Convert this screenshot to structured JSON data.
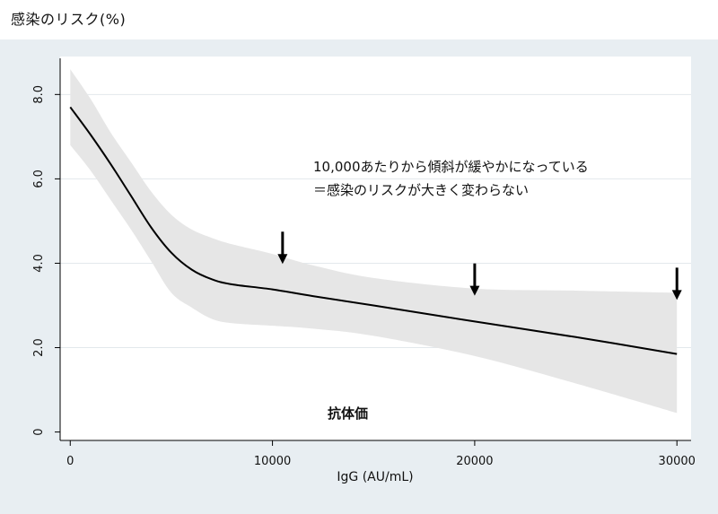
{
  "chart_data": {
    "type": "line",
    "title": "感染のリスク(%)",
    "xlabel": "IgG (AU/mL)",
    "ylabel": "",
    "xlim": [
      -500,
      30700
    ],
    "ylim": [
      -0.2,
      8.9
    ],
    "x_ticks": [
      0,
      10000,
      20000,
      30000
    ],
    "x_tick_labels": [
      "0",
      "10000",
      "20000",
      "30000"
    ],
    "y_ticks": [
      0,
      2,
      4,
      6,
      8
    ],
    "y_tick_labels": [
      "0",
      "2.0",
      "4.0",
      "6.0",
      "8.0"
    ],
    "grid": true,
    "series": [
      {
        "x": [
          0,
          1000,
          2000,
          3000,
          4000,
          5000,
          6000,
          7000,
          8000,
          10000,
          12000,
          15000,
          20000,
          25000,
          30000
        ],
        "values": [
          7.7,
          7.05,
          6.35,
          5.6,
          4.85,
          4.25,
          3.85,
          3.62,
          3.5,
          3.38,
          3.22,
          3.0,
          2.62,
          2.25,
          1.85
        ]
      }
    ],
    "confidence_band": {
      "x": [
        0,
        1000,
        2000,
        3000,
        4000,
        5000,
        6000,
        7000,
        8000,
        10000,
        12000,
        15000,
        20000,
        25000,
        30000
      ],
      "upper": [
        8.6,
        7.9,
        7.1,
        6.4,
        5.7,
        5.15,
        4.8,
        4.6,
        4.45,
        4.22,
        3.95,
        3.65,
        3.4,
        3.35,
        3.3
      ],
      "lower": [
        6.8,
        6.2,
        5.5,
        4.8,
        4.05,
        3.3,
        2.95,
        2.68,
        2.58,
        2.52,
        2.45,
        2.28,
        1.8,
        1.15,
        0.45
      ]
    },
    "arrows": [
      10500,
      20000,
      30000
    ],
    "annotations": {
      "line1": "10,000あたりから傾斜が緩やかになっている",
      "line2": "＝感染のリスクが大きく変わらない",
      "inner_label": "抗体価"
    }
  },
  "colors": {
    "outer_bg": "#e8eef2",
    "plot_bg": "#ffffff",
    "band": "#e6e6e6",
    "line": "#000000",
    "grid": "#e3e8ec"
  }
}
